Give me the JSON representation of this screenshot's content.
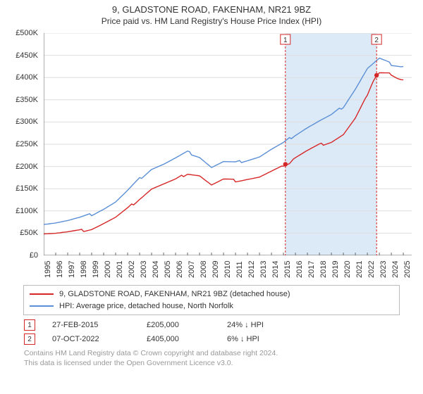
{
  "title": "9, GLADSTONE ROAD, FAKENHAM, NR21 9BZ",
  "subtitle": "Price paid vs. HM Land Registry's House Price Index (HPI)",
  "chart": {
    "type": "line",
    "background_color": "#ffffff",
    "grid_color": "#dddddd",
    "axis_color": "#666666",
    "text_color": "#333333",
    "tick_fontsize": 11,
    "highlight_color": "#dceaf7",
    "xlim": [
      1995,
      2025.7
    ],
    "ylim": [
      0,
      500000
    ],
    "ytick_step": 50000,
    "ytick_labels": [
      "£0",
      "£50K",
      "£100K",
      "£150K",
      "£200K",
      "£250K",
      "£300K",
      "£350K",
      "£400K",
      "£450K",
      "£500K"
    ],
    "xticks": [
      1995,
      1996,
      1997,
      1998,
      1999,
      2000,
      2001,
      2002,
      2003,
      2004,
      2005,
      2006,
      2007,
      2008,
      2009,
      2010,
      2011,
      2012,
      2013,
      2014,
      2015,
      2016,
      2017,
      2018,
      2019,
      2020,
      2021,
      2022,
      2023,
      2024,
      2025
    ],
    "series": [
      {
        "name": "property",
        "label": "9, GLADSTONE ROAD, FAKENHAM, NR21 9BZ (detached house)",
        "color": "#d62728",
        "line_width": 1.4,
        "x": [
          1995,
          1996,
          1997,
          1998,
          1999,
          2000,
          2001,
          2002,
          2003,
          2004,
          2005,
          2006,
          2007,
          2008,
          2009,
          2010,
          2011,
          2012,
          2013,
          2014,
          2015,
          2015.5,
          2016,
          2017,
          2018,
          2019,
          2020,
          2021,
          2022,
          2022.5,
          2022.8,
          2023,
          2024,
          2024.5,
          2025
        ],
        "y": [
          50000,
          50000,
          52000,
          55000,
          60000,
          72000,
          85000,
          105000,
          128000,
          150000,
          160000,
          170000,
          185000,
          180000,
          158000,
          170000,
          168000,
          172000,
          176000,
          188000,
          200000,
          205000,
          220000,
          235000,
          248000,
          256000,
          272000,
          308000,
          360000,
          392000,
          405000,
          410000,
          408000,
          400000,
          395000
        ]
      },
      {
        "name": "hpi",
        "label": "HPI: Average price, detached house, North Norfolk",
        "color": "#5b8fd6",
        "line_width": 1.4,
        "x": [
          1995,
          1996,
          1997,
          1998,
          1999,
          2000,
          2001,
          2002,
          2003,
          2004,
          2005,
          2006,
          2007,
          2008,
          2009,
          2010,
          2011,
          2012,
          2013,
          2014,
          2015,
          2016,
          2017,
          2018,
          2019,
          2020,
          2021,
          2022,
          2023,
          2024,
          2025
        ],
        "y": [
          72000,
          74000,
          78000,
          84000,
          92000,
          105000,
          120000,
          145000,
          172000,
          195000,
          205000,
          218000,
          232000,
          222000,
          198000,
          210000,
          208000,
          215000,
          222000,
          238000,
          252000,
          272000,
          288000,
          302000,
          315000,
          335000,
          375000,
          420000,
          442000,
          430000,
          425000
        ]
      }
    ],
    "sale_markers": [
      {
        "n": "1",
        "x": 2015.16,
        "y": 205000,
        "color": "#d62728"
      },
      {
        "n": "2",
        "x": 2022.77,
        "y": 405000,
        "color": "#d62728"
      }
    ],
    "highlight_range": {
      "x0": 2015.16,
      "x1": 2022.77
    }
  },
  "legend": {
    "border_color": "#bbbbbb",
    "items": [
      {
        "color": "#d62728",
        "label": "9, GLADSTONE ROAD, FAKENHAM, NR21 9BZ (detached house)"
      },
      {
        "color": "#5b8fd6",
        "label": "HPI: Average price, detached house, North Norfolk"
      }
    ]
  },
  "events": [
    {
      "n": "1",
      "border_color": "#d62728",
      "date": "27-FEB-2015",
      "price": "£205,000",
      "diff": "24% ↓ HPI"
    },
    {
      "n": "2",
      "border_color": "#d62728",
      "date": "07-OCT-2022",
      "price": "£405,000",
      "diff": "6% ↓ HPI"
    }
  ],
  "footer": {
    "color": "#999999",
    "line1": "Contains HM Land Registry data © Crown copyright and database right 2024.",
    "line2": "This data is licensed under the Open Government Licence v3.0."
  }
}
